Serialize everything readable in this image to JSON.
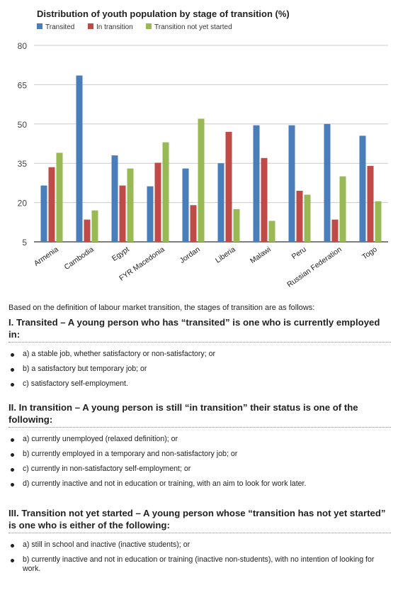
{
  "chart_data": {
    "type": "bar",
    "title": "Distribution of youth population by stage of transition (%)",
    "xlabel": "",
    "ylabel": "",
    "ylim": [
      5,
      80
    ],
    "yticks": [
      5,
      20,
      35,
      50,
      65,
      80
    ],
    "grid": true,
    "legend_position": "top-left",
    "categories": [
      "Armenia",
      "Cambodia",
      "Egypt",
      "FYR Macedonia",
      "Jordan",
      "Liberia",
      "Malawi",
      "Peru",
      "Russian Federation",
      "Togo"
    ],
    "series": [
      {
        "name": "Transited",
        "color": "#4a7ebb",
        "values": [
          26.5,
          68.5,
          38,
          26.2,
          33,
          35,
          49.5,
          49.5,
          50,
          45.5
        ]
      },
      {
        "name": "In transition",
        "color": "#be4b48",
        "values": [
          33.5,
          13.5,
          26.5,
          35.2,
          19,
          47,
          37,
          24.5,
          13.5,
          34
        ]
      },
      {
        "name": "Transition not yet started",
        "color": "#98b954",
        "values": [
          39,
          17,
          33,
          43,
          52,
          17.5,
          13,
          23,
          30,
          20.5
        ]
      }
    ]
  },
  "text": {
    "intro": "Based on the definition of labour market transition, the stages of transition are as follows:",
    "sections": [
      {
        "heading": "I. Transited – A young person who has “transited” is one who is currently employed in:",
        "items": [
          "a) a stable job, whether satisfactory or non-satisfactory; or",
          "b) a satisfactory but temporary job; or",
          "c) satisfactory self-employment."
        ]
      },
      {
        "heading": "II. In transition – A young person is still “in transition” their status is one of the following:",
        "items": [
          "a) currently unemployed (relaxed definition); or",
          "b) currently employed in a temporary and non-satisfactory job; or",
          "c) currently in non-satisfactory self-employment; or",
          "d) currently inactive and not in education or training, with an aim to look for work later."
        ]
      },
      {
        "heading": "III. Transition not yet started – A young person whose “transition has not yet started” is one who is either of the following:",
        "items": [
          "a) still in school and inactive (inactive students); or",
          "b) currently inactive and not in education or training (inactive non-students), with no intention of looking for work."
        ]
      }
    ]
  }
}
